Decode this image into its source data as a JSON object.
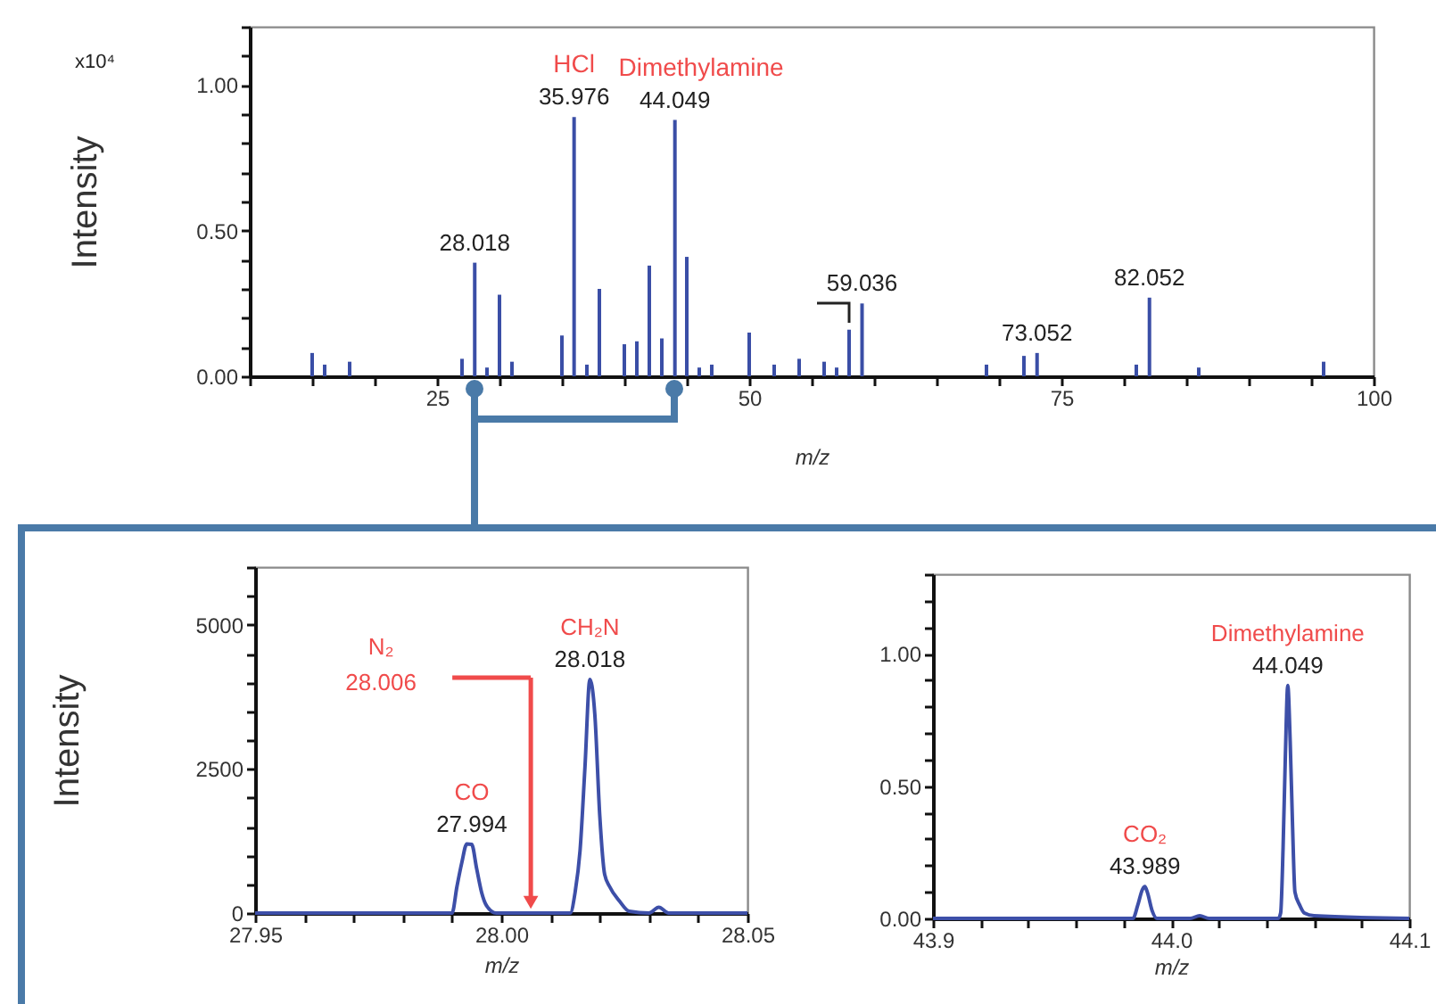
{
  "chart_data": [
    {
      "type": "bar",
      "color": "#3a4ea6",
      "xlabel": "m/z",
      "ylabel": "Intensity",
      "x": [
        15,
        16,
        18,
        27,
        28.018,
        29,
        30,
        31,
        35,
        35.976,
        37,
        38,
        40,
        41,
        42,
        43,
        44.049,
        45,
        46,
        47,
        50,
        52,
        54,
        56,
        57,
        58,
        59.036,
        69,
        72,
        73.052,
        81,
        82.052,
        86,
        96
      ],
      "values": [
        0.08,
        0.04,
        0.05,
        0.06,
        0.39,
        0.03,
        0.28,
        0.05,
        0.14,
        0.89,
        0.04,
        0.3,
        0.11,
        0.12,
        0.38,
        0.13,
        0.88,
        0.41,
        0.03,
        0.04,
        0.15,
        0.04,
        0.06,
        0.05,
        0.03,
        0.16,
        0.25,
        0.04,
        0.07,
        0.08,
        0.04,
        0.27,
        0.03,
        0.05
      ],
      "xlim": [
        10,
        100
      ],
      "ylim": [
        0,
        1.2
      ],
      "xticks": [
        {
          "value": 10,
          "label": null
        },
        {
          "value": 15,
          "label": null
        },
        {
          "value": 20,
          "label": null
        },
        25,
        {
          "value": 30,
          "label": null
        },
        {
          "value": 35,
          "label": null
        },
        {
          "value": 40,
          "label": null
        },
        {
          "value": 45,
          "label": null
        },
        50,
        {
          "value": 55,
          "label": null
        },
        {
          "value": 60,
          "label": null
        },
        {
          "value": 65,
          "label": null
        },
        {
          "value": 70,
          "label": null
        },
        75,
        {
          "value": 80,
          "label": null
        },
        {
          "value": 85,
          "label": null
        },
        {
          "value": 90,
          "label": null
        },
        {
          "value": 95,
          "label": null
        },
        100
      ],
      "yticks": [
        {
          "value": 0,
          "label": "0.00"
        },
        {
          "value": 0.1,
          "label": null
        },
        {
          "value": 0.2,
          "label": null
        },
        {
          "value": 0.3,
          "label": null
        },
        {
          "value": 0.4,
          "label": null
        },
        {
          "value": 0.5,
          "label": "0.50"
        },
        {
          "value": 0.6,
          "label": null
        },
        {
          "value": 0.7,
          "label": null
        },
        {
          "value": 0.8,
          "label": null
        },
        {
          "value": 0.9,
          "label": null
        },
        {
          "value": 1,
          "label": "1.00"
        },
        {
          "value": 1.1,
          "label": null
        },
        {
          "value": 1.2,
          "label": null
        }
      ],
      "annotations": [
        "x10⁴",
        {
          "text": "HCl",
          "x": 35.976,
          "y": 0.89
        },
        {
          "text": "Dimethylamine",
          "x": 44.049,
          "y": 0.88
        },
        {
          "text": "35.976",
          "x": 35.976,
          "y": 0.89
        },
        {
          "text": "44.049",
          "x": 44.049,
          "y": 0.88
        },
        {
          "text": "28.018",
          "x": 28.018,
          "y": 0.39
        },
        {
          "text": "59.036",
          "x": 59.036,
          "y": 0.25
        },
        {
          "text": "73.052",
          "x": 73.052,
          "y": 0.08
        },
        {
          "text": "82.052",
          "x": 82.052,
          "y": 0.27
        }
      ]
    },
    {
      "type": "line",
      "color": "#3d4fa8",
      "xlabel": "m/z",
      "ylabel": "Intensity",
      "x": [
        27.95,
        27.99,
        27.991,
        27.992,
        27.993,
        27.994,
        27.995,
        27.996,
        27.997,
        27.999,
        28.014,
        28.015,
        28.016,
        28.017,
        28.018,
        28.019,
        28.02,
        28.021,
        28.022,
        28.024,
        28.026,
        28.03,
        28.032,
        28.034,
        28.05
      ],
      "values": [
        0,
        0,
        460,
        880,
        1200,
        1190,
        770,
        360,
        130,
        0,
        0,
        360,
        1080,
        2530,
        4050,
        3450,
        1700,
        670,
        460,
        210,
        30,
        0,
        100,
        0,
        0
      ],
      "xlim": [
        27.95,
        28.05
      ],
      "ylim": [
        0,
        6000
      ],
      "xticks": [
        27.95,
        {
          "value": 27.96,
          "label": null
        },
        {
          "value": 27.97,
          "label": null
        },
        {
          "value": 27.98,
          "label": null
        },
        {
          "value": 27.99,
          "label": null
        },
        {
          "value": 28,
          "label": "28.00"
        },
        {
          "value": 28.01,
          "label": null
        },
        {
          "value": 28.02,
          "label": null
        },
        {
          "value": 28.03,
          "label": null
        },
        {
          "value": 28.04,
          "label": null
        },
        28.05
      ],
      "yticks": [
        0,
        {
          "value": 500,
          "label": null
        },
        {
          "value": 1000,
          "label": null
        },
        {
          "value": 1500,
          "label": null
        },
        {
          "value": 2000,
          "label": null
        },
        2500,
        {
          "value": 3000,
          "label": null
        },
        {
          "value": 3500,
          "label": null
        },
        {
          "value": 4000,
          "label": null
        },
        {
          "value": 4500,
          "label": null
        },
        5000,
        {
          "value": 5500,
          "label": null
        },
        {
          "value": 6000,
          "label": null
        }
      ],
      "annotations": [
        {
          "text": "CO",
          "x": 27.994,
          "y": 1190
        },
        {
          "text": "27.994",
          "x": 27.994,
          "y": 1190
        },
        {
          "text": "CH₂N",
          "x": 28.018,
          "y": 4050
        },
        {
          "text": "28.018",
          "x": 28.018,
          "y": 4050
        },
        "28.006"
      ],
      "ref_lines": [
        {
          "axis": "x",
          "value": 28.006,
          "label": "N₂",
          "color": "#f04b4b"
        }
      ]
    },
    {
      "type": "line",
      "color": "#3d4fa8",
      "xlabel": "m/z",
      "x": [
        43.9,
        43.984,
        43.986,
        43.988,
        43.989,
        43.99,
        43.992,
        43.994,
        44.008,
        44.012,
        44.016,
        44.045,
        44.046,
        44.047,
        44.048,
        44.049,
        44.05,
        44.051,
        44.052,
        44.054,
        44.056,
        44.06,
        44.1
      ],
      "values": [
        0,
        0,
        0.05,
        0.11,
        0.12,
        0.1,
        0.03,
        0,
        0,
        0.01,
        0,
        0,
        0.02,
        0.26,
        0.62,
        0.88,
        0.67,
        0.35,
        0.1,
        0.05,
        0.02,
        0.01,
        0
      ],
      "xlim": [
        43.9,
        44.1
      ],
      "ylim": [
        0,
        1.3
      ],
      "xticks": [
        43.9,
        {
          "value": 43.92,
          "label": null
        },
        {
          "value": 43.94,
          "label": null
        },
        {
          "value": 43.96,
          "label": null
        },
        {
          "value": 43.98,
          "label": null
        },
        {
          "value": 44,
          "label": "44.0"
        },
        {
          "value": 44.02,
          "label": null
        },
        {
          "value": 44.04,
          "label": null
        },
        {
          "value": 44.06,
          "label": null
        },
        {
          "value": 44.08,
          "label": null
        },
        44.1
      ],
      "yticks": [
        {
          "value": 0,
          "label": "0.00"
        },
        {
          "value": 0.1,
          "label": null
        },
        {
          "value": 0.2,
          "label": null
        },
        {
          "value": 0.3,
          "label": null
        },
        {
          "value": 0.4,
          "label": null
        },
        {
          "value": 0.5,
          "label": "0.50"
        },
        {
          "value": 0.6,
          "label": null
        },
        {
          "value": 0.7,
          "label": null
        },
        {
          "value": 0.8,
          "label": null
        },
        {
          "value": 0.9,
          "label": null
        },
        {
          "value": 1,
          "label": "1.00"
        },
        {
          "value": 1.1,
          "label": null
        },
        {
          "value": 1.2,
          "label": null
        },
        {
          "value": 1.3,
          "label": null
        }
      ],
      "annotations": [
        {
          "text": "CO₂",
          "x": 43.989,
          "y": 0.12
        },
        {
          "text": "43.989",
          "x": 43.989,
          "y": 0.12
        },
        {
          "text": "Dimethylamine",
          "x": 44.049,
          "y": 0.88
        },
        {
          "text": "44.049",
          "x": 44.049,
          "y": 0.88
        }
      ]
    }
  ]
}
